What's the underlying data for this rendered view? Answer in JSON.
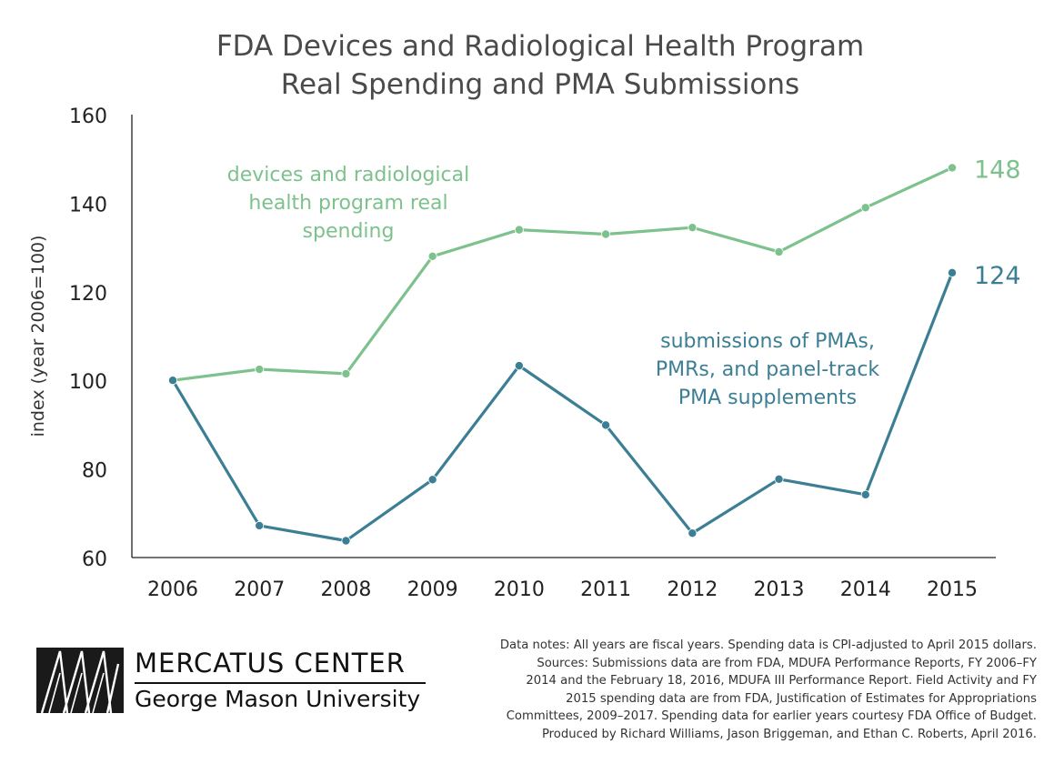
{
  "chart_data": {
    "type": "line",
    "title": [
      "FDA Devices and Radiological Health Program",
      "Real Spending and PMA Submissions"
    ],
    "ylabel": "index (year 2006=100)",
    "xlabel": "",
    "ylim": [
      60,
      160
    ],
    "yticks": [
      60,
      80,
      100,
      120,
      140,
      160
    ],
    "categories": [
      "2006",
      "2007",
      "2008",
      "2009",
      "2010",
      "2011",
      "2012",
      "2013",
      "2014",
      "2015"
    ],
    "grid": false,
    "series": [
      {
        "key": "spending",
        "label_lines": [
          "devices and radiological",
          "health program real",
          "spending"
        ],
        "color": "#7dc18d",
        "values": [
          100,
          102.5,
          101.5,
          128,
          134,
          133,
          134.5,
          129,
          139,
          148
        ],
        "end_label": "148"
      },
      {
        "key": "submissions",
        "label_lines": [
          "submissions of PMAs,",
          "PMRs, and panel-track",
          "PMA supplements"
        ],
        "color": "#3c7f94",
        "values": [
          100,
          67.2,
          63.8,
          77.6,
          103.3,
          89.9,
          65.5,
          77.7,
          74.2,
          124.3
        ],
        "end_label": "124"
      }
    ]
  },
  "notes": {
    "line1": "Data notes: All years are fiscal years. Spending data is CPI-adjusted to April 2015 dollars.",
    "line2": "Sources: Submissions data are from FDA, MDUFA Performance Reports, FY 2006–FY",
    "line3": "2014 and the February 18, 2016, MDUFA III Performance Report. Field Activity and FY",
    "line4": "2015 spending data are from FDA, Justification of Estimates for Appropriations",
    "line5": "Committees, 2009–2017. Spending data for earlier years courtesy FDA Office of Budget.",
    "line6": "Produced by Richard Williams, Jason Briggeman, and Ethan C. Roberts, April 2016."
  },
  "logo": {
    "name": "MERCATUS CENTER",
    "sub": "George Mason University"
  }
}
